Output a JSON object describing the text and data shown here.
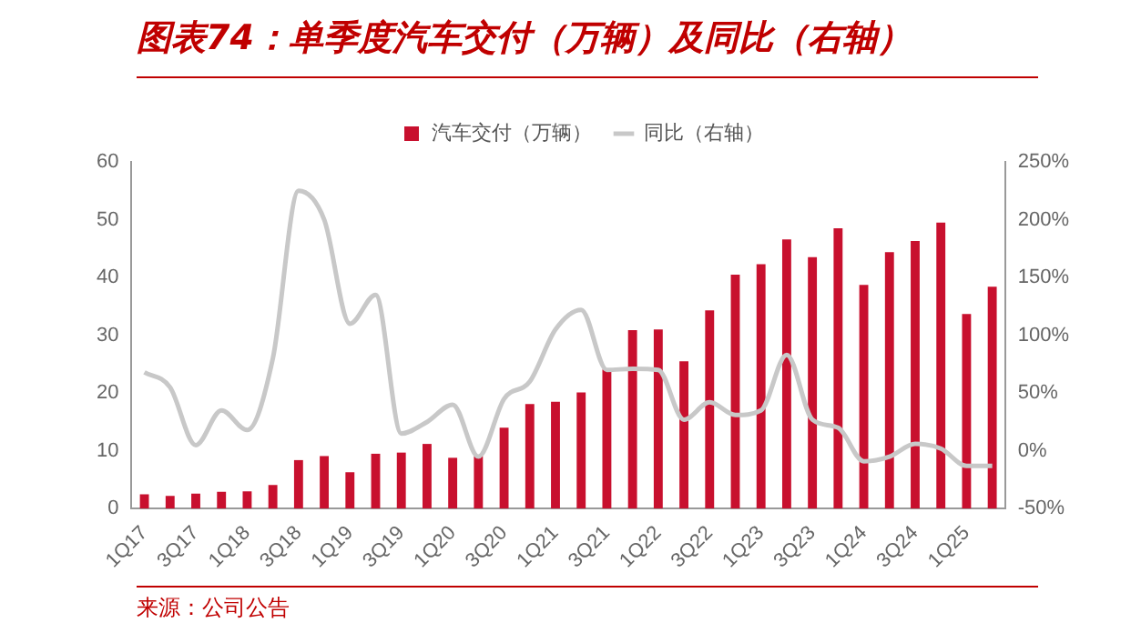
{
  "chart_data": {
    "type": "bar",
    "title": "图表74：单季度汽车交付（万辆）及同比（右轴）",
    "categories": [
      "1Q17",
      null,
      "3Q17",
      null,
      "1Q18",
      null,
      "3Q18",
      null,
      "1Q19",
      null,
      "3Q19",
      null,
      "1Q20",
      null,
      "3Q20",
      null,
      "1Q21",
      null,
      "3Q21",
      null,
      "1Q22",
      null,
      "3Q22",
      null,
      "1Q23",
      null,
      "3Q23",
      null,
      "1Q24",
      null,
      "3Q24",
      null,
      "1Q25",
      null
    ],
    "series": [
      {
        "name": "汽车交付（万辆）",
        "color": "#c8102e",
        "values": [
          2.5,
          2.2,
          2.6,
          2.9,
          3.0,
          4.1,
          8.4,
          9.1,
          6.3,
          9.5,
          9.7,
          11.2,
          8.8,
          9.1,
          14.0,
          18.1,
          18.5,
          20.1,
          24.1,
          30.9,
          31.0,
          25.5,
          34.3,
          40.5,
          42.3,
          46.6,
          43.5,
          48.5,
          38.7,
          44.4,
          46.3,
          49.5,
          33.7,
          38.4
        ]
      },
      {
        "name": "同比（右轴）",
        "type": "line",
        "axis": "y2",
        "color": "#c8c8c8",
        "values": [
          68,
          55,
          5,
          35,
          18,
          80,
          225,
          200,
          110,
          135,
          15,
          25,
          40,
          -5,
          45,
          60,
          105,
          122,
          70,
          71,
          70,
          27,
          42,
          31,
          35,
          83,
          27,
          20,
          -9,
          -5,
          6,
          2,
          -13,
          -13
        ]
      }
    ],
    "ylim": [
      0,
      60
    ],
    "yticks": [
      0,
      10,
      20,
      30,
      40,
      50,
      60
    ],
    "y2lim": [
      -50,
      250
    ],
    "y2ticks": [
      {
        "value": -50,
        "label": "-50%"
      },
      {
        "value": 0,
        "label": "0%"
      },
      {
        "value": 50,
        "label": "50%"
      },
      {
        "value": 100,
        "label": "100%"
      },
      {
        "value": 150,
        "label": "150%"
      },
      {
        "value": 200,
        "label": "200%"
      },
      {
        "value": 250,
        "label": "250%"
      }
    ],
    "grid": false,
    "legend": "top",
    "marker": "none",
    "annotations": [
      "来源：公司公告"
    ]
  }
}
